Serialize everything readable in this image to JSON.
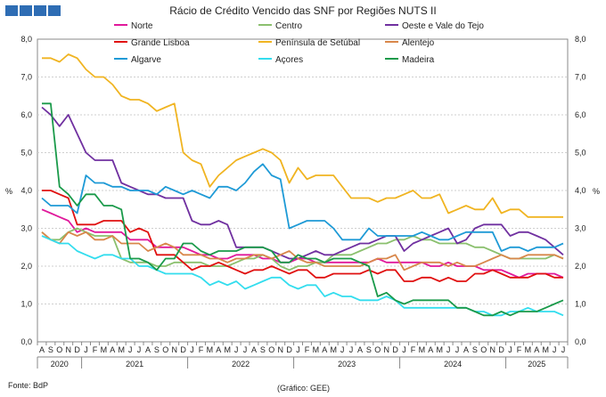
{
  "header": {
    "title": "Rácio de Crédito Vencido das SNF por Regiões NUTS II",
    "logo_color": "#2e6db4"
  },
  "footer": {
    "source": "Fonte: BdP",
    "credit": "(Gráfico: GEE)"
  },
  "chart_data": {
    "type": "line",
    "title": "Rácio de Crédito Vencido das SNF por Regiões NUTS II",
    "ylabel": "%",
    "ylim": [
      0,
      8
    ],
    "y_ticks": [
      "0,0",
      "1,0",
      "2,0",
      "3,0",
      "4,0",
      "5,0",
      "6,0",
      "7,0",
      "8,0"
    ],
    "grid": true,
    "legend_position": "top",
    "x": [
      "2020-08",
      "2020-09",
      "2020-10",
      "2020-11",
      "2020-12",
      "2021-01",
      "2021-02",
      "2021-03",
      "2021-04",
      "2021-05",
      "2021-06",
      "2021-07",
      "2021-08",
      "2021-09",
      "2021-10",
      "2021-11",
      "2021-12",
      "2022-01",
      "2022-02",
      "2022-03",
      "2022-04",
      "2022-05",
      "2022-06",
      "2022-07",
      "2022-08",
      "2022-09",
      "2022-10",
      "2022-11",
      "2022-12",
      "2023-01",
      "2023-02",
      "2023-03",
      "2023-04",
      "2023-05",
      "2023-06",
      "2023-07",
      "2023-08",
      "2023-09",
      "2023-10",
      "2023-11",
      "2023-12",
      "2024-01",
      "2024-02",
      "2024-03",
      "2024-04",
      "2024-05",
      "2024-06",
      "2024-07",
      "2024-08",
      "2024-09",
      "2024-10",
      "2024-11",
      "2024-12",
      "2025-01",
      "2025-02",
      "2025-03",
      "2025-04",
      "2025-05",
      "2025-06",
      "2025-07"
    ],
    "month_labels": [
      "A",
      "S",
      "O",
      "N",
      "D",
      "J",
      "F",
      "M",
      "A",
      "M",
      "J",
      "J",
      "A",
      "S",
      "O",
      "N",
      "D",
      "J",
      "F",
      "M",
      "A",
      "M",
      "J",
      "J",
      "A",
      "S",
      "O",
      "N",
      "D",
      "J",
      "F",
      "M",
      "A",
      "M",
      "J",
      "J",
      "A",
      "S",
      "O",
      "N",
      "D",
      "J",
      "F",
      "M",
      "A",
      "M",
      "J",
      "J",
      "A",
      "S",
      "O",
      "N",
      "D",
      "J",
      "F",
      "M",
      "A",
      "M",
      "J",
      "J"
    ],
    "year_labels": [
      {
        "label": "2020",
        "start": 0,
        "end": 4
      },
      {
        "label": "2021",
        "start": 5,
        "end": 16
      },
      {
        "label": "2022",
        "start": 17,
        "end": 28
      },
      {
        "label": "2023",
        "start": 29,
        "end": 40
      },
      {
        "label": "2024",
        "start": 41,
        "end": 52
      },
      {
        "label": "2025",
        "start": 53,
        "end": 59
      }
    ],
    "series": [
      {
        "name": "Norte",
        "color": "#e0199b",
        "values": [
          3.5,
          3.4,
          3.3,
          3.2,
          2.9,
          3.0,
          2.9,
          2.9,
          2.9,
          2.9,
          2.7,
          2.7,
          2.7,
          2.5,
          2.5,
          2.5,
          2.5,
          2.4,
          2.3,
          2.3,
          2.2,
          2.2,
          2.3,
          2.3,
          2.3,
          2.2,
          2.2,
          2.1,
          2.1,
          2.2,
          2.2,
          2.1,
          2.1,
          2.1,
          2.1,
          2.1,
          2.1,
          2.1,
          2.2,
          2.1,
          2.1,
          2.1,
          2.1,
          2.1,
          2.0,
          2.0,
          2.1,
          2.0,
          2.0,
          2.0,
          1.9,
          1.9,
          1.9,
          1.8,
          1.7,
          1.8,
          1.8,
          1.8,
          1.8,
          1.7
        ]
      },
      {
        "name": "Centro",
        "color": "#8bc06e",
        "values": [
          2.9,
          2.7,
          2.7,
          2.9,
          3.0,
          2.9,
          2.8,
          2.8,
          2.8,
          2.2,
          2.1,
          2.1,
          2.1,
          2.0,
          2.0,
          2.1,
          2.1,
          2.1,
          2.1,
          2.0,
          2.0,
          2.0,
          2.1,
          2.2,
          2.2,
          2.3,
          2.2,
          2.0,
          1.9,
          2.0,
          2.0,
          2.1,
          2.1,
          2.3,
          2.3,
          2.3,
          2.4,
          2.5,
          2.6,
          2.6,
          2.7,
          2.7,
          2.8,
          2.7,
          2.7,
          2.6,
          2.6,
          2.6,
          2.6,
          2.5,
          2.5,
          2.4,
          2.3,
          2.2,
          2.2,
          2.2,
          2.2,
          2.2,
          2.3,
          2.2
        ]
      },
      {
        "name": "Oeste e Vale do Tejo",
        "color": "#7030a0",
        "values": [
          6.2,
          6.0,
          5.7,
          6.0,
          5.5,
          5.0,
          4.8,
          4.8,
          4.8,
          4.2,
          4.1,
          4.0,
          3.9,
          3.9,
          3.8,
          3.8,
          3.8,
          3.2,
          3.1,
          3.1,
          3.2,
          3.1,
          2.5,
          2.5,
          2.5,
          2.5,
          2.4,
          2.3,
          2.2,
          2.2,
          2.3,
          2.4,
          2.3,
          2.3,
          2.4,
          2.5,
          2.6,
          2.6,
          2.7,
          2.8,
          2.8,
          2.4,
          2.6,
          2.7,
          2.8,
          2.9,
          3.0,
          2.6,
          2.7,
          3.0,
          3.1,
          3.1,
          3.1,
          2.8,
          2.9,
          2.9,
          2.8,
          2.7,
          2.5,
          2.3
        ]
      },
      {
        "name": "Grande Lisboa",
        "color": "#e01010",
        "values": [
          4.0,
          4.0,
          3.9,
          3.8,
          3.1,
          3.1,
          3.1,
          3.2,
          3.2,
          3.2,
          2.9,
          3.0,
          2.9,
          2.3,
          2.3,
          2.3,
          2.1,
          1.9,
          2.0,
          2.0,
          2.1,
          2.0,
          1.9,
          1.8,
          1.9,
          1.9,
          2.0,
          1.9,
          1.8,
          1.9,
          1.9,
          1.7,
          1.7,
          1.8,
          1.8,
          1.8,
          1.8,
          1.9,
          1.8,
          1.9,
          1.9,
          1.6,
          1.6,
          1.7,
          1.7,
          1.6,
          1.7,
          1.6,
          1.6,
          1.8,
          1.8,
          1.9,
          1.8,
          1.7,
          1.7,
          1.7,
          1.8,
          1.8,
          1.7,
          1.7
        ]
      },
      {
        "name": "Península de Setúbal",
        "color": "#f0b421",
        "values": [
          7.5,
          7.5,
          7.4,
          7.6,
          7.5,
          7.2,
          7.0,
          7.0,
          6.8,
          6.5,
          6.4,
          6.4,
          6.3,
          6.1,
          6.2,
          6.3,
          5.0,
          4.8,
          4.7,
          4.1,
          4.4,
          4.6,
          4.8,
          4.9,
          5.0,
          5.1,
          5.0,
          4.8,
          4.2,
          4.6,
          4.3,
          4.4,
          4.4,
          4.4,
          4.1,
          3.8,
          3.8,
          3.8,
          3.7,
          3.8,
          3.8,
          3.9,
          4.0,
          3.8,
          3.8,
          3.9,
          3.4,
          3.5,
          3.6,
          3.5,
          3.5,
          3.8,
          3.4,
          3.5,
          3.5,
          3.3,
          3.3,
          3.3,
          3.3,
          3.3
        ]
      },
      {
        "name": "Alentejo",
        "color": "#d8874a",
        "values": [
          2.9,
          2.7,
          2.6,
          2.9,
          2.8,
          2.9,
          2.7,
          2.7,
          2.8,
          2.6,
          2.6,
          2.6,
          2.4,
          2.5,
          2.6,
          2.5,
          2.3,
          2.3,
          2.3,
          2.2,
          2.2,
          2.1,
          2.2,
          2.2,
          2.3,
          2.3,
          2.2,
          2.3,
          2.4,
          2.2,
          2.1,
          2.1,
          2.0,
          2.0,
          2.0,
          2.0,
          2.0,
          2.1,
          2.2,
          2.2,
          2.3,
          1.9,
          2.0,
          2.1,
          2.1,
          2.1,
          2.0,
          2.1,
          2.0,
          2.0,
          2.1,
          2.2,
          2.3,
          2.2,
          2.2,
          2.3,
          2.3,
          2.3,
          2.3,
          2.2
        ]
      },
      {
        "name": "Algarve",
        "color": "#1e9ad6",
        "values": [
          3.8,
          3.6,
          3.6,
          3.6,
          3.4,
          4.4,
          4.2,
          4.2,
          4.1,
          4.1,
          4.0,
          4.0,
          4.0,
          3.9,
          4.1,
          4.0,
          3.9,
          4.0,
          3.9,
          3.8,
          4.1,
          4.1,
          4.0,
          4.2,
          4.5,
          4.7,
          4.4,
          4.3,
          3.0,
          3.1,
          3.2,
          3.2,
          3.2,
          3.0,
          2.7,
          2.7,
          2.7,
          3.0,
          2.8,
          2.8,
          2.8,
          2.8,
          2.8,
          2.9,
          2.8,
          2.7,
          2.7,
          2.8,
          2.9,
          2.9,
          2.9,
          2.9,
          2.4,
          2.5,
          2.5,
          2.4,
          2.5,
          2.5,
          2.5,
          2.6
        ]
      },
      {
        "name": "Açores",
        "color": "#33ddee",
        "values": [
          2.8,
          2.7,
          2.6,
          2.6,
          2.4,
          2.3,
          2.2,
          2.3,
          2.3,
          2.2,
          2.2,
          2.0,
          2.0,
          1.9,
          1.8,
          1.8,
          1.8,
          1.8,
          1.7,
          1.5,
          1.6,
          1.5,
          1.6,
          1.4,
          1.5,
          1.6,
          1.7,
          1.7,
          1.5,
          1.4,
          1.5,
          1.5,
          1.2,
          1.3,
          1.2,
          1.2,
          1.1,
          1.1,
          1.1,
          1.2,
          1.1,
          0.9,
          0.9,
          0.9,
          0.9,
          0.9,
          0.9,
          0.9,
          0.9,
          0.8,
          0.8,
          0.7,
          0.7,
          0.8,
          0.8,
          0.9,
          0.8,
          0.8,
          0.8,
          0.7
        ]
      },
      {
        "name": "Madeira",
        "color": "#1a9a4a",
        "values": [
          6.3,
          6.3,
          4.1,
          3.9,
          3.6,
          3.9,
          3.9,
          3.6,
          3.6,
          3.5,
          2.2,
          2.2,
          2.1,
          1.9,
          2.2,
          2.2,
          2.6,
          2.6,
          2.4,
          2.3,
          2.4,
          2.4,
          2.4,
          2.5,
          2.5,
          2.5,
          2.4,
          2.1,
          2.1,
          2.3,
          2.2,
          2.2,
          2.1,
          2.2,
          2.2,
          2.2,
          2.1,
          2.0,
          1.2,
          1.3,
          1.1,
          1.0,
          1.1,
          1.1,
          1.1,
          1.1,
          1.1,
          0.9,
          0.9,
          0.8,
          0.7,
          0.7,
          0.8,
          0.7,
          0.8,
          0.8,
          0.8,
          0.9,
          1.0,
          1.1
        ]
      }
    ]
  }
}
